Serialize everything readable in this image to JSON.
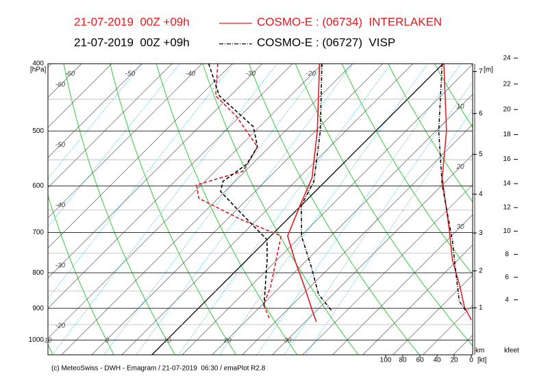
{
  "chart_data": {
    "type": "emagram",
    "stations": [
      {
        "run": "21-07-2019  00Z +09h",
        "name": "COSMO-E : (06734)  INTERLAKEN",
        "color": "#e8161b",
        "style": "solid",
        "temperature": {
          "p": [
            400,
            500,
            584,
            640,
            708,
            767,
            840,
            903,
            941
          ],
          "t": [
            -20.5,
            -9.7,
            -2.8,
            -0.2,
            2.8,
            8.0,
            14.2,
            19.0,
            21.8
          ]
        },
        "dewpoint": {
          "p": [
            400,
            445,
            476,
            527,
            571,
            598,
            625,
            669,
            708,
            840,
            889,
            930
          ],
          "t": [
            -37.4,
            -32.4,
            -25.6,
            -17.0,
            -15.3,
            -20.8,
            -18.2,
            -8.0,
            1.7,
            8.5,
            10.2,
            13.4
          ]
        },
        "wind": {
          "p": [
            400,
            500,
            584,
            690,
            767,
            840,
            896,
            935
          ],
          "speed": [
            32,
            29,
            34,
            26,
            22,
            13,
            8,
            0
          ]
        }
      },
      {
        "run": "21-07-2019  00Z +09h",
        "name": "COSMO-E : (06727)  VISP",
        "color": "#000000",
        "style": "dashdot",
        "temperature": {
          "p": [
            400,
            500,
            591,
            640,
            708,
            785,
            859,
            909
          ],
          "t": [
            -20.1,
            -9.2,
            -1.9,
            0.0,
            5.1,
            11.9,
            17.6,
            22.7
          ]
        },
        "dewpoint": {
          "p": [
            400,
            445,
            493,
            527,
            558,
            591,
            611,
            654,
            717,
            767,
            899
          ],
          "t": [
            -38.9,
            -31.8,
            -21.0,
            -17.0,
            -15.9,
            -17.0,
            -15.7,
            -9.1,
            0.0,
            3.4,
            10.8
          ]
        },
        "wind": {
          "p": [
            400,
            500,
            598,
            719,
            800,
            879,
            909
          ],
          "speed": [
            34,
            38,
            34,
            22,
            18,
            14,
            6
          ]
        }
      }
    ],
    "y_label": "[hPa]",
    "ylim": [
      400,
      1050
    ],
    "yticks": [
      400,
      500,
      600,
      700,
      800,
      900,
      1000
    ],
    "yminor": [
      450,
      550,
      650,
      750,
      850,
      950
    ],
    "xlim": [
      -19.7,
      50.8
    ],
    "isotherms": [
      -110,
      -105,
      -100,
      -95,
      -90,
      -85,
      -80,
      -75,
      -70,
      -65,
      -60,
      -55,
      -50,
      -45,
      -40,
      -35,
      -30,
      -25,
      -20,
      -15,
      -10,
      -5,
      0,
      5,
      10,
      15,
      20,
      25,
      30,
      35,
      40,
      45,
      50
    ],
    "dry_adiabats": [
      -40,
      -30,
      -20,
      -10,
      0,
      10,
      20,
      30,
      40,
      50,
      60,
      70,
      80,
      90,
      100,
      110,
      120,
      130,
      140
    ],
    "mixing_ratios": [
      0.1,
      0.2,
      0.5,
      1,
      2,
      3,
      5,
      8,
      12,
      16,
      20
    ],
    "isotherm_labels": {
      "top": [
        -60,
        -50,
        -40,
        -30,
        -20
      ],
      "left": [
        -60,
        -50,
        -40,
        -30,
        -20
      ],
      "bottom": [
        -10,
        0,
        10,
        20,
        30
      ],
      "right": [
        10,
        20,
        30
      ]
    },
    "wind_label": "[kt]",
    "wlim": [
      100,
      0
    ],
    "wticks": [
      100,
      80,
      60,
      40,
      20,
      0
    ],
    "km_axis": {
      "label": "[m]",
      "unit": "km",
      "ticks": [
        1,
        2,
        3,
        4,
        5,
        6,
        7
      ]
    },
    "kfeet_axis": {
      "unit": "kfeet",
      "ticks": [
        4,
        6,
        8,
        10,
        12,
        14,
        16,
        18,
        20,
        22,
        24
      ]
    },
    "footer": "(c) MeteoSwiss - DWH - Emagram / 21-07-2019  06:30 / emaPlot R2.8"
  }
}
